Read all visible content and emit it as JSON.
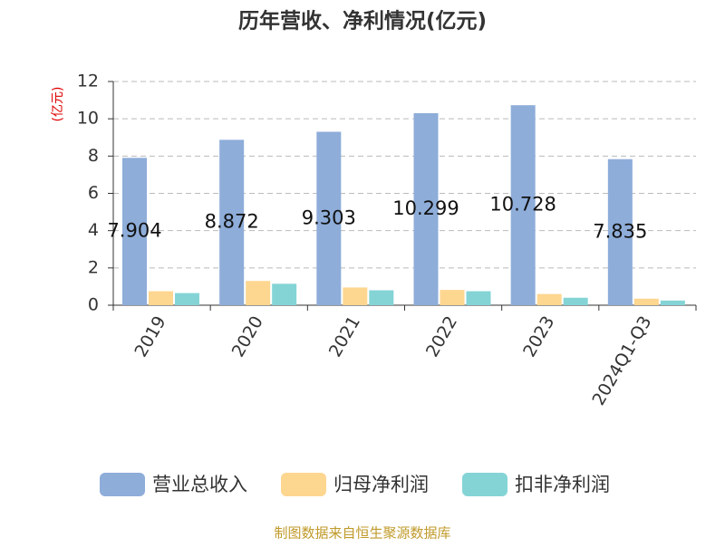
{
  "chart_data": {
    "type": "bar",
    "title": "历年营收、净利情况(亿元)",
    "y_label": "(亿元)",
    "categories": [
      "2019",
      "2020",
      "2021",
      "2022",
      "2023",
      "2024Q1-Q3"
    ],
    "series": [
      {
        "name": "营业总收入",
        "color": "#8eadd9",
        "values": [
          7.904,
          8.872,
          9.303,
          10.299,
          10.728,
          7.835
        ],
        "show_labels": true
      },
      {
        "name": "归母净利润",
        "color": "#fdd690",
        "values": [
          0.75,
          1.3,
          0.95,
          0.82,
          0.6,
          0.35
        ]
      },
      {
        "name": "扣非净利润",
        "color": "#84d4d6",
        "values": [
          0.65,
          1.15,
          0.8,
          0.75,
          0.4,
          0.25
        ]
      }
    ],
    "ylim": [
      0,
      12
    ],
    "yticks": [
      0,
      2,
      4,
      6,
      8,
      10,
      12
    ],
    "grid": true,
    "source": "制图数据来自恒生聚源数据库"
  }
}
